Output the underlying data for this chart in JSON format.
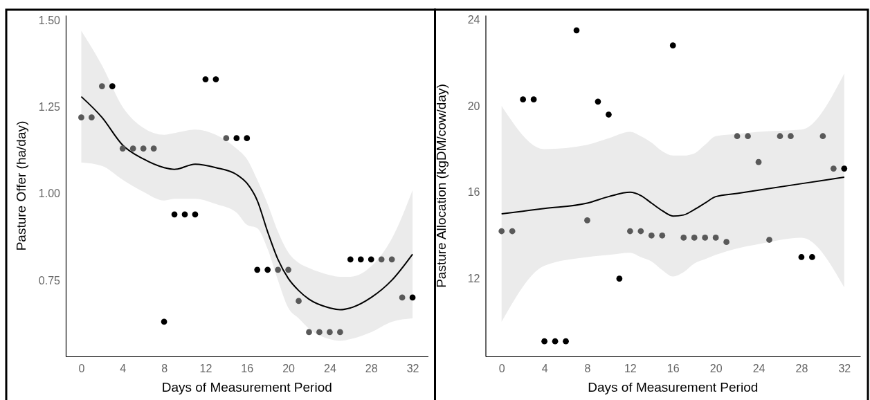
{
  "chart_data": [
    {
      "type": "scatter",
      "xlabel": "Days of Measurement Period",
      "ylabel": "Pasture Offer (ha/day)",
      "xlim": [
        -1.5,
        33.5
      ],
      "ylim": [
        0.53,
        1.515
      ],
      "xticks": [
        0,
        4,
        8,
        12,
        16,
        20,
        24,
        28,
        32
      ],
      "yticks": [
        {
          "value": 0.75,
          "label": "0.75"
        },
        {
          "value": 1,
          "label": "1.00"
        },
        {
          "value": 1.25,
          "label": "1.25"
        },
        {
          "value": 1.5,
          "label": "1.50"
        }
      ],
      "series": [
        {
          "marker": "circle",
          "x": [
            0,
            1,
            2,
            3,
            4,
            5,
            6,
            7,
            8,
            9,
            10,
            11,
            12,
            13,
            14,
            15,
            16,
            17,
            18,
            19,
            20,
            21,
            22,
            23,
            24,
            25,
            26,
            27,
            28,
            29,
            30,
            31,
            32
          ],
          "values": [
            1.22,
            1.22,
            1.31,
            1.31,
            1.13,
            1.13,
            1.13,
            1.13,
            0.63,
            0.94,
            0.94,
            0.94,
            1.33,
            1.33,
            1.16,
            1.16,
            1.16,
            0.78,
            0.78,
            0.78,
            0.78,
            0.69,
            0.6,
            0.6,
            0.6,
            0.6,
            0.81,
            0.81,
            0.81,
            0.81,
            0.81,
            0.7,
            0.7
          ],
          "colors": [
            "#595959",
            "#595959",
            "#595959",
            "#000000",
            "#595959",
            "#595959",
            "#595959",
            "#595959",
            "#000000",
            "#000000",
            "#000000",
            "#000000",
            "#000000",
            "#000000",
            "#595959",
            "#000000",
            "#000000",
            "#000000",
            "#000000",
            "#595959",
            "#595959",
            "#595959",
            "#595959",
            "#595959",
            "#595959",
            "#595959",
            "#000000",
            "#000000",
            "#000000",
            "#595959",
            "#595959",
            "#595959",
            "#000000"
          ]
        },
        {
          "type": "line",
          "color": "#000000",
          "line_style": "solid",
          "marker": "none",
          "x": [
            0,
            2,
            4,
            6,
            8,
            9,
            11,
            13,
            15,
            16,
            17,
            18,
            19,
            20,
            21,
            22,
            24,
            25,
            26,
            28,
            30,
            32
          ],
          "values": [
            1.28,
            1.22,
            1.14,
            1.1,
            1.075,
            1.07,
            1.085,
            1.075,
            1.055,
            1.03,
            0.98,
            0.89,
            0.81,
            0.755,
            0.72,
            0.695,
            0.67,
            0.665,
            0.67,
            0.7,
            0.75,
            0.825
          ],
          "lower": [
            1.09,
            1.08,
            1.04,
            1.005,
            0.98,
            0.985,
            0.985,
            0.97,
            0.945,
            0.91,
            0.9,
            0.84,
            0.75,
            0.67,
            0.64,
            0.61,
            0.58,
            0.575,
            0.58,
            0.6,
            0.63,
            0.64
          ],
          "upper": [
            1.47,
            1.37,
            1.25,
            1.19,
            1.17,
            1.175,
            1.185,
            1.17,
            1.13,
            1.1,
            1.04,
            0.97,
            0.89,
            0.83,
            0.8,
            0.785,
            0.765,
            0.76,
            0.76,
            0.79,
            0.87,
            1.01
          ]
        }
      ]
    },
    {
      "type": "scatter",
      "xlabel": "Days of Measurement Period",
      "ylabel": "Pasture Allocation (kgDM/cow/day)",
      "xlim": [
        -1.5,
        33.5
      ],
      "ylim": [
        8.4,
        24.2
      ],
      "xticks": [
        0,
        4,
        8,
        12,
        16,
        20,
        24,
        28,
        32
      ],
      "yticks": [
        12,
        16,
        20,
        24
      ],
      "series": [
        {
          "marker": "circle",
          "x": [
            0,
            1,
            2,
            3,
            4,
            5,
            6,
            7,
            8,
            9,
            10,
            11,
            12,
            13,
            14,
            15,
            16,
            17,
            18,
            19,
            20,
            21,
            22,
            23,
            24,
            25,
            26,
            27,
            28,
            29,
            30,
            31,
            32
          ],
          "values": [
            14.2,
            14.2,
            20.3,
            20.3,
            9.1,
            9.1,
            9.1,
            23.5,
            14.7,
            20.2,
            19.6,
            12,
            14.2,
            14.2,
            14,
            14,
            22.8,
            13.9,
            13.9,
            13.9,
            13.9,
            13.7,
            18.6,
            18.6,
            17.4,
            13.8,
            18.6,
            18.6,
            13,
            13,
            18.6,
            17.1,
            17.1
          ],
          "colors": [
            "#595959",
            "#595959",
            "#000000",
            "#000000",
            "#000000",
            "#000000",
            "#000000",
            "#000000",
            "#595959",
            "#000000",
            "#000000",
            "#000000",
            "#595959",
            "#595959",
            "#595959",
            "#595959",
            "#000000",
            "#595959",
            "#595959",
            "#595959",
            "#595959",
            "#595959",
            "#595959",
            "#595959",
            "#595959",
            "#595959",
            "#595959",
            "#595959",
            "#000000",
            "#000000",
            "#595959",
            "#595959",
            "#000000"
          ]
        },
        {
          "type": "line",
          "color": "#000000",
          "line_style": "solid",
          "marker": "none",
          "x": [
            0,
            4,
            8,
            10,
            12,
            13,
            14,
            15,
            16,
            17,
            18,
            19,
            20,
            22,
            24,
            28,
            32
          ],
          "values": [
            15,
            15.25,
            15.5,
            15.8,
            16,
            15.85,
            15.5,
            15.15,
            14.9,
            14.95,
            15.2,
            15.5,
            15.8,
            15.95,
            16.1,
            16.4,
            16.7
          ],
          "lower": [
            10,
            12.6,
            13,
            13.1,
            13.2,
            13,
            12.8,
            12.4,
            12.1,
            12.3,
            12.7,
            12.9,
            13.1,
            13.4,
            13.6,
            13.9,
            11.6
          ],
          "upper": [
            20,
            18,
            18.2,
            18.5,
            18.8,
            18.6,
            18.3,
            17.9,
            17.7,
            17.7,
            17.8,
            18.2,
            18.6,
            18.7,
            18.8,
            18.9,
            21.5
          ]
        }
      ]
    }
  ]
}
